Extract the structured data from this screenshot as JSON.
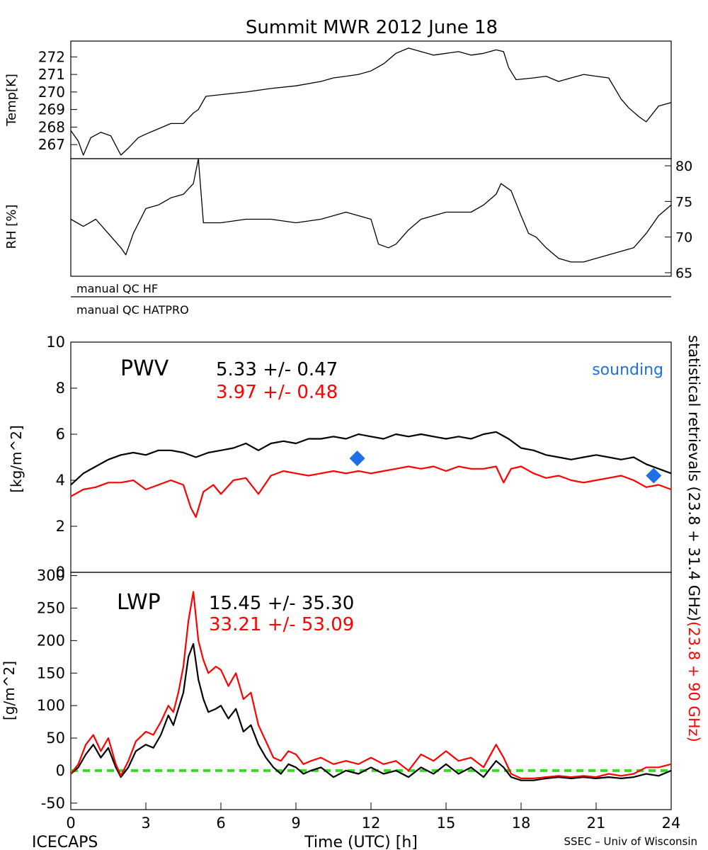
{
  "title": "Summit MWR 2012 June 18",
  "footer": {
    "left": "ICECAPS",
    "center": "Time (UTC) [h]",
    "right": "SSEC – Univ of Wisconsin"
  },
  "colors": {
    "black_series": "#000000",
    "red_series": "#ff0000",
    "sounding": "#1f6fe6",
    "zero_line": "#33dd22"
  },
  "chart_data": [
    {
      "type": "line",
      "ylabel": "Temp[K]",
      "xlim": [
        0,
        24
      ],
      "ylim": [
        266.2,
        272.9
      ],
      "yticks": [
        267,
        268,
        269,
        270,
        271,
        272
      ],
      "series": [
        {
          "color": "#000000",
          "x": [
            0,
            0.3,
            0.5,
            0.8,
            1.2,
            1.6,
            2.0,
            2.3,
            2.7,
            3.0,
            3.5,
            4.0,
            4.5,
            4.9,
            5.1,
            5.4,
            6,
            7,
            8,
            9,
            10,
            10.5,
            11,
            11.5,
            12,
            12.5,
            13,
            13.5,
            14,
            14.5,
            15,
            15.5,
            16,
            16.5,
            17,
            17.3,
            17.5,
            17.8,
            18.5,
            19,
            19.5,
            20,
            20.5,
            21,
            21.5,
            22,
            22.3,
            22.7,
            23,
            23.5,
            24
          ],
          "y": [
            267.8,
            267.2,
            266.4,
            267.4,
            267.7,
            267.5,
            266.4,
            266.8,
            267.4,
            267.6,
            267.9,
            268.2,
            268.2,
            268.8,
            269.0,
            269.75,
            269.85,
            270.0,
            270.2,
            270.35,
            270.6,
            270.8,
            270.9,
            271.0,
            271.2,
            271.6,
            272.2,
            272.5,
            272.3,
            272.1,
            272.2,
            272.3,
            272.1,
            272.2,
            272.4,
            272.3,
            271.4,
            270.7,
            270.8,
            270.9,
            270.6,
            270.8,
            271.0,
            270.9,
            270.8,
            269.6,
            269.1,
            268.6,
            268.3,
            269.2,
            269.4
          ]
        }
      ]
    },
    {
      "type": "line",
      "ylabel": "RH [%]",
      "xlim": [
        0,
        24
      ],
      "ylim": [
        64.5,
        81
      ],
      "yticks": [
        65,
        70,
        75,
        80
      ],
      "series": [
        {
          "color": "#000000",
          "x": [
            0,
            0.5,
            1,
            1.5,
            2,
            2.2,
            2.5,
            3,
            3.5,
            4,
            4.5,
            4.9,
            5.1,
            5.3,
            6,
            7,
            8,
            9,
            10,
            11,
            11.5,
            12,
            12.3,
            12.7,
            13,
            13.5,
            14,
            15,
            16,
            16.5,
            17,
            17.2,
            17.6,
            18.0,
            18.3,
            18.6,
            19,
            19.5,
            20,
            20.5,
            21,
            21.5,
            22,
            22.5,
            23,
            23.5,
            24
          ],
          "y": [
            72.5,
            71.5,
            72.5,
            70.5,
            68.5,
            67.5,
            70.5,
            74.0,
            74.5,
            75.5,
            76.0,
            77.5,
            81.0,
            72.0,
            72.0,
            72.5,
            72.5,
            72.0,
            72.5,
            73.5,
            73.0,
            72.5,
            69.0,
            68.5,
            69.0,
            71.0,
            72.5,
            73.5,
            73.5,
            74.5,
            76.0,
            77.5,
            76.5,
            73.0,
            70.5,
            70.0,
            68.5,
            67.0,
            66.5,
            66.5,
            67.0,
            67.5,
            68.0,
            68.5,
            70.5,
            73.0,
            74.5
          ]
        }
      ]
    },
    {
      "type": "line",
      "title": "PWV",
      "ylabel": "[kg/m^2]",
      "xlim": [
        0,
        24
      ],
      "ylim": [
        0,
        10
      ],
      "yticks": [
        0,
        2,
        4,
        6,
        8,
        10
      ],
      "annotations": [
        {
          "text": "5.33 +/-  0.47",
          "color": "#000000"
        },
        {
          "text": "3.97 +/-  0.48",
          "color": "#ff0000"
        },
        {
          "text": "sounding",
          "color": "#1f6fe6"
        }
      ],
      "right_label_black": "statistical retrievals (23.8 + 31.4 GHz)",
      "right_label_red": "(23.8 + 90 GHz)",
      "sounding_points": [
        {
          "x": 11.45,
          "y": 4.95
        },
        {
          "x": 23.3,
          "y": 4.2
        }
      ],
      "series": [
        {
          "color": "#000000",
          "x": [
            0,
            0.5,
            1,
            1.5,
            2,
            2.5,
            3,
            3.5,
            4,
            4.5,
            5,
            5.5,
            6,
            6.5,
            7,
            7.5,
            8,
            8.5,
            9,
            9.5,
            10,
            10.5,
            11,
            11.5,
            12,
            12.5,
            13,
            13.5,
            14,
            14.5,
            15,
            15.5,
            16,
            16.5,
            17,
            17.5,
            18,
            18.5,
            19,
            19.5,
            20,
            20.5,
            21,
            21.5,
            22,
            22.5,
            23,
            23.5,
            24
          ],
          "y": [
            3.8,
            4.3,
            4.6,
            4.9,
            5.1,
            5.2,
            5.1,
            5.3,
            5.3,
            5.2,
            5.0,
            5.2,
            5.3,
            5.4,
            5.6,
            5.3,
            5.6,
            5.7,
            5.6,
            5.8,
            5.8,
            5.9,
            5.8,
            6.0,
            5.9,
            5.8,
            6.0,
            5.9,
            6.0,
            5.9,
            5.8,
            5.9,
            5.8,
            6.0,
            6.1,
            5.8,
            5.4,
            5.3,
            5.1,
            5.0,
            4.9,
            5.0,
            5.1,
            5.0,
            4.9,
            5.0,
            4.7,
            4.5,
            4.3
          ]
        },
        {
          "color": "#ff0000",
          "x": [
            0,
            0.5,
            1,
            1.5,
            2,
            2.5,
            3,
            3.5,
            4,
            4.5,
            4.8,
            5,
            5.3,
            5.7,
            6,
            6.5,
            7,
            7.5,
            8,
            8.5,
            9,
            9.5,
            10,
            10.5,
            11,
            11.5,
            12,
            12.5,
            13,
            13.5,
            14,
            14.5,
            15,
            15.5,
            16,
            16.5,
            17,
            17.3,
            17.6,
            18,
            18.5,
            19,
            19.5,
            20,
            20.5,
            21,
            21.5,
            22,
            22.5,
            23,
            23.5,
            24
          ],
          "y": [
            3.3,
            3.6,
            3.7,
            3.9,
            3.9,
            4.0,
            3.6,
            3.8,
            4.0,
            3.8,
            2.8,
            2.4,
            3.5,
            3.8,
            3.4,
            4.0,
            4.1,
            3.4,
            4.2,
            4.4,
            4.3,
            4.2,
            4.3,
            4.4,
            4.3,
            4.4,
            4.3,
            4.4,
            4.5,
            4.6,
            4.5,
            4.6,
            4.4,
            4.6,
            4.5,
            4.5,
            4.6,
            3.9,
            4.5,
            4.6,
            4.3,
            4.1,
            4.2,
            4.0,
            3.9,
            4.0,
            4.1,
            4.2,
            4.0,
            3.7,
            3.8,
            3.6
          ]
        }
      ]
    },
    {
      "type": "line",
      "title": "LWP",
      "ylabel": "[g/m^2]",
      "xlabel": "Time (UTC) [h]",
      "xlim": [
        0,
        24
      ],
      "ylim": [
        -60,
        305
      ],
      "yticks": [
        -50,
        0,
        50,
        100,
        150,
        200,
        250,
        300
      ],
      "xticks": [
        0,
        3,
        6,
        9,
        12,
        15,
        18,
        21,
        24
      ],
      "annotations": [
        {
          "text": "15.45 +/-  35.30",
          "color": "#000000"
        },
        {
          "text": "33.21 +/-  53.09",
          "color": "#ff0000"
        }
      ],
      "zero_line": 0,
      "series": [
        {
          "color": "#000000",
          "x": [
            0,
            0.3,
            0.6,
            0.9,
            1.2,
            1.5,
            1.8,
            2.0,
            2.3,
            2.6,
            3.0,
            3.3,
            3.6,
            3.9,
            4.1,
            4.3,
            4.5,
            4.7,
            4.9,
            5.1,
            5.3,
            5.5,
            5.8,
            6.0,
            6.3,
            6.6,
            6.9,
            7.2,
            7.5,
            7.8,
            8.1,
            8.4,
            8.7,
            9.0,
            9.3,
            9.6,
            10,
            10.5,
            11,
            11.5,
            12,
            12.5,
            13,
            13.5,
            14,
            14.5,
            15,
            15.5,
            16,
            16.5,
            17,
            17.3,
            17.6,
            18,
            18.5,
            19,
            19.5,
            20,
            20.5,
            21,
            21.5,
            22,
            22.5,
            23,
            23.5,
            24
          ],
          "y": [
            -5,
            5,
            25,
            40,
            20,
            35,
            5,
            -10,
            5,
            30,
            40,
            35,
            55,
            85,
            70,
            95,
            120,
            175,
            195,
            140,
            110,
            90,
            95,
            100,
            80,
            95,
            60,
            70,
            40,
            20,
            5,
            -5,
            10,
            5,
            -5,
            0,
            5,
            -10,
            0,
            -5,
            5,
            -5,
            0,
            -10,
            5,
            -5,
            10,
            -5,
            5,
            -10,
            15,
            5,
            -10,
            -15,
            -15,
            -12,
            -10,
            -12,
            -10,
            -12,
            -10,
            -12,
            -10,
            -5,
            -8,
            0
          ]
        },
        {
          "color": "#ff0000",
          "x": [
            0,
            0.3,
            0.6,
            0.9,
            1.2,
            1.5,
            1.8,
            2.0,
            2.3,
            2.6,
            3.0,
            3.3,
            3.6,
            3.9,
            4.1,
            4.3,
            4.5,
            4.7,
            4.9,
            5.1,
            5.3,
            5.5,
            5.8,
            6.0,
            6.3,
            6.6,
            6.9,
            7.2,
            7.5,
            7.8,
            8.1,
            8.4,
            8.7,
            9.0,
            9.3,
            9.6,
            10,
            10.5,
            11,
            11.5,
            12,
            12.5,
            13,
            13.5,
            14,
            14.5,
            15,
            15.5,
            16,
            16.5,
            17,
            17.3,
            17.6,
            18,
            18.5,
            19,
            19.5,
            20,
            20.5,
            21,
            21.5,
            22,
            22.5,
            23,
            23.5,
            24
          ],
          "y": [
            -5,
            10,
            40,
            55,
            30,
            50,
            10,
            -8,
            15,
            45,
            60,
            55,
            75,
            100,
            90,
            120,
            160,
            230,
            275,
            200,
            170,
            150,
            160,
            155,
            130,
            150,
            110,
            120,
            70,
            45,
            20,
            15,
            30,
            25,
            10,
            15,
            20,
            10,
            15,
            10,
            20,
            10,
            15,
            0,
            25,
            15,
            30,
            15,
            20,
            5,
            40,
            20,
            -5,
            -12,
            -12,
            -10,
            -8,
            -10,
            -8,
            -10,
            -5,
            -8,
            -5,
            5,
            5,
            10
          ]
        }
      ]
    }
  ],
  "qc_bars": {
    "hf": "manual QC HF",
    "hatpro": "manual QC HATPRO"
  }
}
